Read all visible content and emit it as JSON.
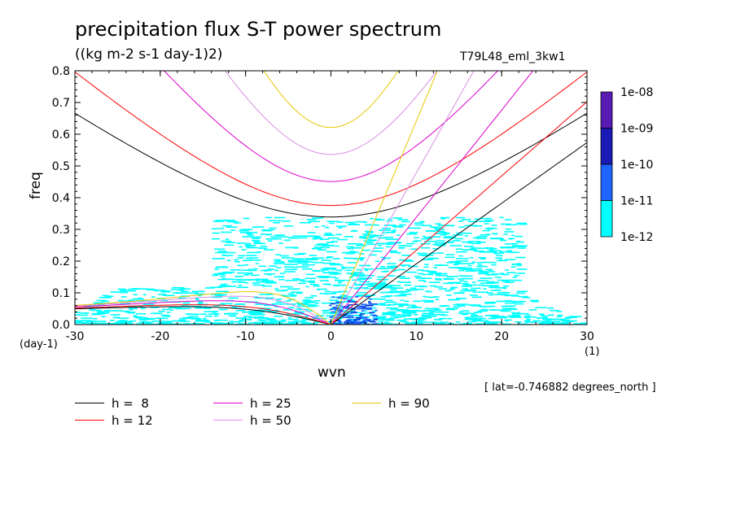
{
  "title": "precipitation flux S-T power spectrum",
  "units": "((kg m-2 s-1 day-1)2)",
  "run_label": "T79L48_eml_3kw1",
  "lat_note": "[ lat=-0.746882 degrees_north ]",
  "chart_data": {
    "type": "heatmap",
    "xlabel": "wvn",
    "ylabel": "freq",
    "x_unit": "(1)",
    "y_unit": "(day-1)",
    "xlim": [
      -30,
      30
    ],
    "ylim": [
      0,
      0.8
    ],
    "x_ticks": [
      "-30",
      "-20",
      "-10",
      "0",
      "10",
      "20",
      "30"
    ],
    "y_ticks": [
      "0.0",
      "0.1",
      "0.2",
      "0.3",
      "0.4",
      "0.5",
      "0.6",
      "0.7",
      "0.8"
    ],
    "colorbar": {
      "labels": [
        "1e-08",
        "1e-09",
        "1e-10",
        "1e-11",
        "1e-12"
      ],
      "colors": [
        "#5a1ab4",
        "#1a1ab4",
        "#0a3cd2",
        "#1e64ff",
        "#00ffff"
      ]
    },
    "dispersion_curves": [
      {
        "name": "h =  8",
        "color": "#000000"
      },
      {
        "name": "h = 12",
        "color": "#ff0000"
      },
      {
        "name": "h = 25",
        "color": "#dd00cc"
      },
      {
        "name": "h = 50",
        "color": "#d88fe0"
      },
      {
        "name": "h = 90",
        "color": "#e6c800"
      }
    ]
  }
}
